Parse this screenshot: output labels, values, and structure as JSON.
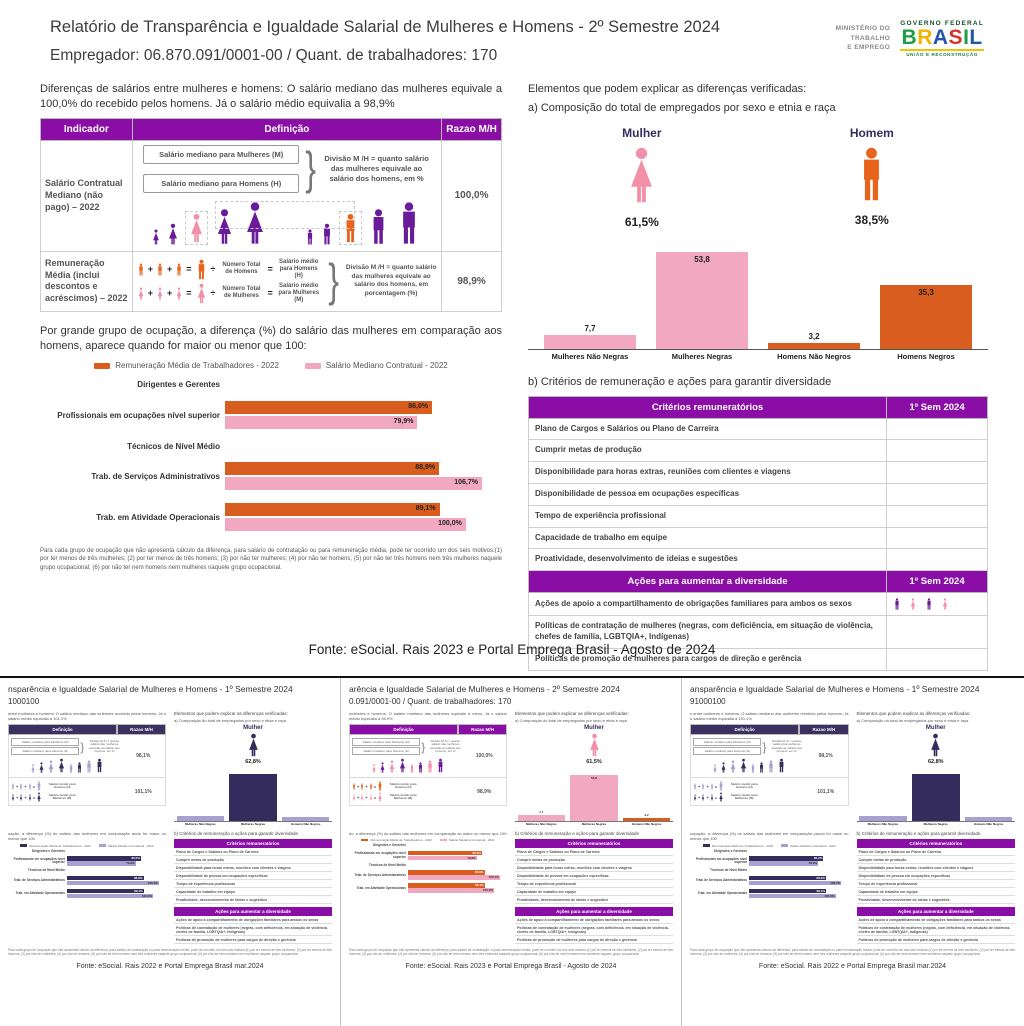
{
  "colors": {
    "accent_purple": "#8a0ea6",
    "orange": "#d95d1e",
    "pink": "#f3a8c2",
    "deep_purple": "#6a1b9a",
    "pink_figure": "#f48fa8",
    "orange_figure": "#e8641c",
    "navy": "#352c5e",
    "lavender": "#a8a0d0"
  },
  "logo": {
    "ministry_lines": [
      "MINISTÉRIO DO",
      "TRABALHO",
      "E EMPREGO"
    ],
    "gov_top": "GOVERNO FEDERAL",
    "brand": "BRASIL",
    "brand_colors": [
      "#1f9d44",
      "#f0b400",
      "#2456a6",
      "#d5342c",
      "#1f9d44",
      "#2456a6"
    ],
    "tagline": "UNIÃO E RECONSTRUÇÃO"
  },
  "header": {
    "title": "Relatório de Transparência e Igualdade Salarial de Mulheres e Homens - 2º Semestre 2024",
    "employer_line": "Empregador: 06.870.091/0001-00    /    Quant. de trabalhadores: 170"
  },
  "intro_left": "Diferenças de salários entre mulheres e homens: O salário mediano das mulheres equivale a 100,0% do recebido pelos homens. Já o salário médio equivalia a 98,9%",
  "indicator_table": {
    "headers": [
      "Indicador",
      "Definição",
      "Razao M/H"
    ],
    "row1": {
      "indicator": "Salário Contratual Mediano (não pago) – 2022",
      "box1": "Salário mediano para Mulheres (M)",
      "box2": "Salário mediano para Homens (H)",
      "explain": "Divisão M /H = quanto salário das mulheres equivale ao salário dos homens, em %",
      "ratio": "100,0%"
    },
    "row2": {
      "indicator": "Remuneração Média (inclui descontos e acréscimos) – 2022",
      "men_total": "Número Total de Homens",
      "men_avg": "Salário médio para Homens (H)",
      "women_total": "Número Total de Mulheres",
      "women_avg": "Salário médio para Mulheres (M)",
      "explain": "Divisão M /H = quanto salário das mulheres equivale ao salário dos homens, em porcentagem (%)",
      "ratio": "98,9%"
    }
  },
  "occupation": {
    "intro": "Por grande grupo de ocupação, a diferença (%) do salário das mulheres em comparação aos homens, aparece quando for maior ou menor que 100:",
    "footnote": "Para cada grupo de ocupação que não apresenta cálculo da diferença, para salário de contratação ou para remuneração média, pode ter ocorrido um dos seis motivos:(1) por ter menos de três mulheres; (2) por ter menos de três homens; (3) por não ter mulheres; (4) por não ter homens; (5) por não ter três homens nem três mulheres naquele grupo ocupacional; (6) por não ter nem homens nem mulheres naquele grupo ocupacional."
  },
  "elements": {
    "heading": "Elementos que podem explicar as diferenças verificadas:",
    "item_a": "a) Composição do total de empregados por sexo e etnia e raça",
    "mulher": {
      "label": "Mulher",
      "value": "61,5%"
    },
    "homem": {
      "label": "Homem",
      "value": "38,5%"
    },
    "item_b": "b) Critérios de remuneração e ações para garantir diversidade"
  },
  "criteria": {
    "table1": {
      "header": [
        "Critérios remuneratórios",
        "1º Sem 2024"
      ],
      "rows": [
        "Plano de Cargos e Salários ou Plano de Carreira",
        "Cumprir metas de produção",
        "Disponibilidade para horas extras, reuniões com clientes e viagens",
        "Disponibilidade de pessoa em ocupações específicas",
        "Tempo de experiência profissional",
        "Capacidade de trabalho em equipe",
        "Proatividade, desenvolvimento de ideias e sugestões"
      ]
    },
    "table2": {
      "header": [
        "Ações para aumentar a diversidade",
        "1º Sem 2024"
      ],
      "rows": [
        {
          "label": "Ações de apoio a compartilhamento de obrigações familiares para ambos os sexos",
          "icons": true
        },
        {
          "label": "Políticas de contratação de mulheres (negras, com deficiência, em situação de violência, chefes de família, LGBTQIA+, Indígenas)",
          "icons": false
        },
        {
          "label": "Políticas de promoção de mulheres para cargos de direção e gerência",
          "icons": false
        }
      ]
    }
  },
  "fonte": "Fonte: eSocial. Rais 2023 e Portal Emprega Brasil - Agosto de 2024",
  "chart_data": [
    {
      "type": "bar",
      "title": "a) Composição do total de empregados por sexo e etnia e raça",
      "categories": [
        "Mulheres Não Negras",
        "Mulheres Negras",
        "Homens Não Negros",
        "Homens Negros"
      ],
      "values": [
        7.7,
        53.8,
        3.2,
        35.3
      ],
      "value_labels": [
        "7,7",
        "53,8",
        "3,2",
        "35,3"
      ],
      "colors": [
        "#f3a8c2",
        "#f3a8c2",
        "#d95d1e",
        "#d95d1e"
      ],
      "ylim": [
        0,
        60
      ],
      "grid": false,
      "legend_position": "none"
    },
    {
      "type": "bar",
      "orientation": "horizontal",
      "title": "Diferença (%) do salário das mulheres em comparação aos homens por grande grupo de ocupação",
      "categories": [
        "Dirigentes e Gerentes",
        "Profissionais em ocupações nível superior",
        "Técnicos de Nível Médio",
        "Trab. de Serviços Administrativos",
        "Trab. em Atividade Operacionais"
      ],
      "series": [
        {
          "name": "Remuneração Média de Trabalhadores - 2022",
          "color": "#d95d1e",
          "values": [
            null,
            86.0,
            null,
            88.9,
            89.1
          ],
          "value_labels": [
            "",
            "86,0%",
            "",
            "88,9%",
            "89,1%"
          ]
        },
        {
          "name": "Salário Mediano Contratual - 2022",
          "color": "#f3a8c2",
          "values": [
            null,
            79.9,
            null,
            106.7,
            100.0
          ],
          "value_labels": [
            "",
            "79,9%",
            "",
            "106,7%",
            "100,0%"
          ]
        }
      ],
      "xlim": [
        0,
        115
      ],
      "grid": false,
      "legend_position": "top"
    },
    {
      "type": "pictogram",
      "title": "Composição do total de empregados por sexo",
      "categories": [
        "Mulher",
        "Homem"
      ],
      "values": [
        61.5,
        38.5
      ],
      "value_labels": [
        "61,5%",
        "38,5%"
      ]
    }
  ],
  "thumbnails": [
    {
      "title": "nsparência e Igualdade Salarial de Mulheres e Homens - 1º Semestre 2024",
      "subtitle": "1000100",
      "theme": "navy",
      "para_left": "entre mulheres e homens: O salário mediano das mulheres recebido pelos homens. Já o salário médio equivalia a 101,1%",
      "ratios": [
        "98,1%",
        "101,1%"
      ],
      "mulher_label": "Mulher",
      "mulher_value": "62,8%",
      "comp_values": [
        6,
        55,
        5
      ],
      "comp_value_labels": [
        "",
        "",
        ""
      ],
      "comp_categories": [
        "Mulheres Não Negras",
        "Mulheres Negras",
        "Homens Não Negros"
      ],
      "occupation_para": "uação, a diferença (%) do salário das mulheres em comparação ando for maior ou menor que 100",
      "fonte": "Fonte: eSocial. Rais 2022 e Portal Emprega Brasil mar.2024"
    },
    {
      "title": "arência e Igualdade Salarial de Mulheres e Homens - 2º Semestre 2024",
      "subtitle": "0.091/0001-00   /   Quant. de trabalhadores: 170",
      "theme": "purple",
      "para_left": "mulheres e homens: O salário mediano das mulheres equivale a mens. Já o salário médio equivalia a 98,9%",
      "ratios": [
        "100,0%",
        "98,9%"
      ],
      "mulher_label": "Mulher",
      "mulher_value": "61,5%",
      "comp_values": [
        7.7,
        53.8,
        3.2
      ],
      "comp_value_labels": [
        "7,7",
        "53,8",
        "3,2"
      ],
      "comp_categories": [
        "Mulheres Não Negras",
        "Mulheres Negras",
        "Homens Não Negros"
      ],
      "occupation_para": "do, a diferença (%) do salário das mulheres em comparação ao maior ou menor que 100",
      "fonte": "Fonte: eSocial. Rais 2023 e Portal Emprega Brasil - Agosto de 2024"
    },
    {
      "title": "ansparência e Igualdade Salarial de Mulheres e Homens - 1º Semestre 2024",
      "subtitle": "91000100",
      "theme": "navy",
      "para_left": "s entre mulheres e homens: O salário mediano das mulheres recebido pelos homens. Já o salário médio equivalia a 101,1%",
      "ratios": [
        "98,1%",
        "101,1%"
      ],
      "mulher_label": "Mulher",
      "mulher_value": "62,8%",
      "comp_values": [
        6,
        55,
        5
      ],
      "comp_value_labels": [
        "",
        "",
        ""
      ],
      "comp_categories": [
        "Mulheres Não Negras",
        "Mulheres Negras",
        "Homens Não Negros"
      ],
      "occupation_para": "cupação, a diferença (%) do salário das mulheres em comparação pando for maior ou menor que 100",
      "fonte": "Fonte: eSocial. Rais 2022 e Portal Emprega Brasil mar.2024"
    }
  ]
}
